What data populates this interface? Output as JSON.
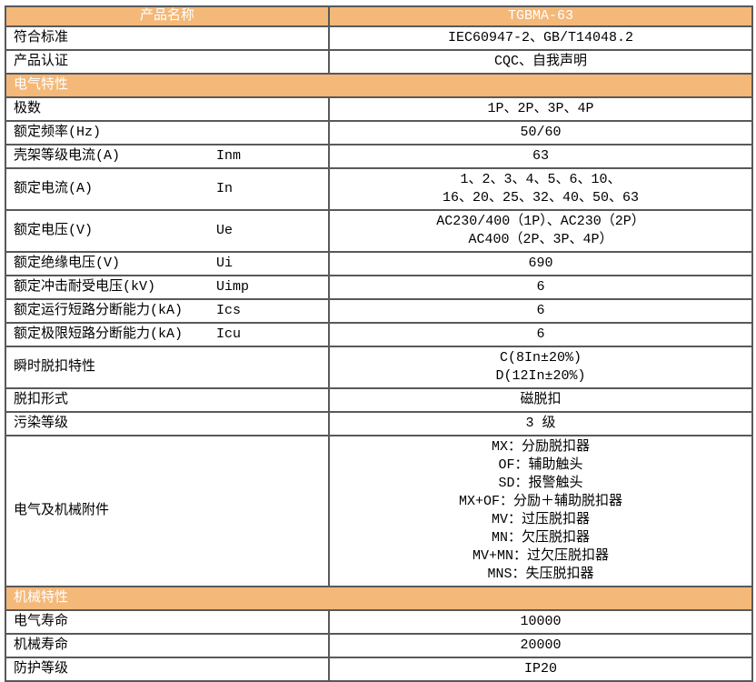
{
  "colors": {
    "band_background": "#f4b878",
    "band_text": "#ffffff",
    "border_outer": "#2e2e2e",
    "border_inner": "#595959",
    "body_text": "#000000"
  },
  "table": {
    "rows": [
      {
        "type": "header",
        "label": "产品名称",
        "value_lines": [
          "TGBMA-63"
        ]
      },
      {
        "type": "data",
        "label": "符合标准",
        "symbol": "",
        "value_lines": [
          "IEC60947-2、GB/T14048.2"
        ]
      },
      {
        "type": "data",
        "label": "产品认证",
        "symbol": "",
        "value_lines": [
          "CQC、自我声明"
        ]
      },
      {
        "type": "band",
        "label": "电气特性"
      },
      {
        "type": "data",
        "label": "极数",
        "symbol": "",
        "value_lines": [
          "1P、2P、3P、4P"
        ]
      },
      {
        "type": "data",
        "label": "额定频率(Hz)",
        "symbol": "",
        "value_lines": [
          "50/60"
        ]
      },
      {
        "type": "data",
        "label": "壳架等级电流(A)",
        "symbol": "Inm",
        "value_lines": [
          "63"
        ]
      },
      {
        "type": "data",
        "label": "额定电流(A)",
        "symbol": "In",
        "value_lines": [
          "1、2、3、4、5、6、10、",
          "16、20、25、32、40、50、63"
        ]
      },
      {
        "type": "data",
        "label": "额定电压(V)",
        "symbol": "Ue",
        "value_lines": [
          "AC230/400（1P）、AC230（2P）",
          "AC400（2P、3P、4P）"
        ]
      },
      {
        "type": "data",
        "label": "额定绝缘电压(V)",
        "symbol": "Ui",
        "value_lines": [
          "690"
        ]
      },
      {
        "type": "data",
        "label": "额定冲击耐受电压(kV)",
        "symbol": "Uimp",
        "value_lines": [
          "6"
        ]
      },
      {
        "type": "data",
        "label": "额定运行短路分断能力(kA)",
        "symbol": "Ics",
        "value_lines": [
          "6"
        ]
      },
      {
        "type": "data",
        "label": "额定极限短路分断能力(kA)",
        "symbol": "Icu",
        "value_lines": [
          "6"
        ]
      },
      {
        "type": "data",
        "label": "瞬时脱扣特性",
        "symbol": "",
        "value_lines": [
          "C(8In±20%)",
          "D(12In±20%)"
        ]
      },
      {
        "type": "data",
        "label": "脱扣形式",
        "symbol": "",
        "value_lines": [
          "磁脱扣"
        ]
      },
      {
        "type": "data",
        "label": "污染等级",
        "symbol": "",
        "value_lines": [
          "3 级"
        ]
      },
      {
        "type": "data",
        "label": "电气及机械附件",
        "symbol": "",
        "value_lines": [
          "MX：分励脱扣器",
          "OF：辅助触头",
          "SD：报警触头",
          "MX+OF：分励＋辅助脱扣器",
          "MV：过压脱扣器",
          "MN：欠压脱扣器",
          "MV+MN：过欠压脱扣器",
          "MNS：失压脱扣器"
        ]
      },
      {
        "type": "band",
        "label": "机械特性"
      },
      {
        "type": "data",
        "label": "电气寿命",
        "symbol": "",
        "value_lines": [
          "10000"
        ]
      },
      {
        "type": "data",
        "label": "机械寿命",
        "symbol": "",
        "value_lines": [
          "20000"
        ]
      },
      {
        "type": "data",
        "label": "防护等级",
        "symbol": "",
        "value_lines": [
          "IP20"
        ]
      }
    ]
  }
}
